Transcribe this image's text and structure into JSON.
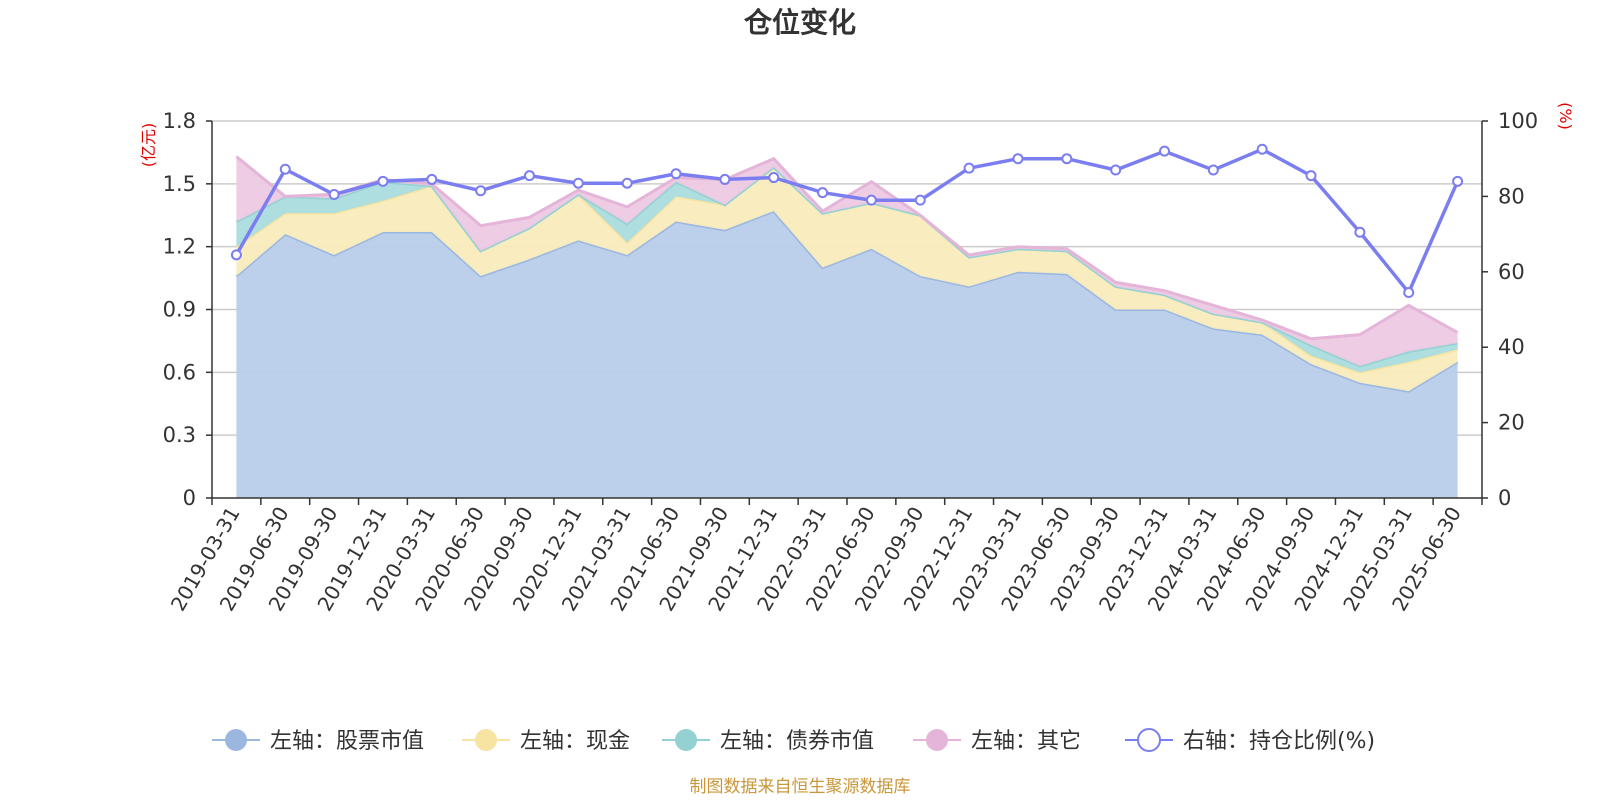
{
  "chart_data": {
    "type": "area",
    "title": "仓位变化",
    "left_axis_unit": "(亿元)",
    "right_axis_unit": "(%)",
    "left_ylim": [
      0,
      1.8
    ],
    "left_yticks": [
      "0",
      "0.3",
      "0.6",
      "0.9",
      "1.2",
      "1.5",
      "1.8"
    ],
    "right_ylim": [
      0,
      100
    ],
    "right_yticks": [
      "0",
      "20",
      "40",
      "60",
      "80",
      "100"
    ],
    "grid": true,
    "legend_position": "bottom",
    "source": "制图数据来自恒生聚源数据库",
    "categories": [
      "2019-03-31",
      "2019-06-30",
      "2019-09-30",
      "2019-12-31",
      "2020-03-31",
      "2020-06-30",
      "2020-09-30",
      "2020-12-31",
      "2021-03-31",
      "2021-06-30",
      "2021-09-30",
      "2021-12-31",
      "2022-03-31",
      "2022-06-30",
      "2022-09-30",
      "2022-12-31",
      "2023-03-31",
      "2023-06-30",
      "2023-09-30",
      "2023-12-31",
      "2024-03-31",
      "2024-06-30",
      "2024-09-30",
      "2024-12-31",
      "2025-03-31",
      "2025-06-30"
    ],
    "series": [
      {
        "name": "左轴：股票市值",
        "axis": "left",
        "kind": "stacked-area",
        "color": "#9bb7e0",
        "fill": "#b8cdea",
        "values": [
          1.06,
          1.26,
          1.16,
          1.27,
          1.27,
          1.06,
          1.14,
          1.23,
          1.16,
          1.32,
          1.28,
          1.37,
          1.1,
          1.19,
          1.06,
          1.01,
          1.08,
          1.07,
          0.9,
          0.9,
          0.81,
          0.78,
          0.64,
          0.55,
          0.51,
          0.65
        ]
      },
      {
        "name": "左轴：现金",
        "axis": "left",
        "kind": "stacked-area",
        "color": "#f7e4a3",
        "fill": "#f9ecbd",
        "values": [
          0.14,
          0.1,
          0.2,
          0.15,
          0.22,
          0.12,
          0.15,
          0.22,
          0.06,
          0.12,
          0.12,
          0.21,
          0.26,
          0.22,
          0.29,
          0.14,
          0.11,
          0.11,
          0.11,
          0.07,
          0.07,
          0.06,
          0.04,
          0.05,
          0.14,
          0.06
        ]
      },
      {
        "name": "左轴：债券市值",
        "axis": "left",
        "kind": "stacked-area",
        "color": "#93d1d3",
        "fill": "#aadcdd",
        "values": [
          0.12,
          0.08,
          0.07,
          0.09,
          0,
          0,
          0,
          0,
          0.09,
          0.07,
          0,
          0,
          0,
          0,
          0,
          0,
          0,
          0,
          0,
          0,
          0,
          0,
          0.05,
          0.03,
          0.05,
          0.03
        ]
      },
      {
        "name": "左轴：其它",
        "axis": "left",
        "kind": "stacked-area",
        "color": "#e4b5d9",
        "fill": "#ecc9e3",
        "values": [
          0.31,
          0,
          0.02,
          0.01,
          0.01,
          0.12,
          0.05,
          0.02,
          0.08,
          0.02,
          0.12,
          0.04,
          0.01,
          0.1,
          0,
          0.01,
          0.01,
          0.01,
          0.02,
          0.02,
          0.04,
          0.01,
          0.03,
          0.15,
          0.22,
          0.05
        ]
      },
      {
        "name": "右轴：持仓比例(%)",
        "axis": "right",
        "kind": "line",
        "color": "#7b7ef0",
        "values": [
          64.5,
          87.2,
          80.5,
          84.0,
          84.5,
          81.5,
          85.5,
          83.5,
          83.5,
          86.0,
          84.5,
          85.0,
          81.0,
          79.0,
          79.0,
          87.5,
          90.0,
          90.0,
          87.0,
          92.0,
          87.0,
          92.5,
          85.5,
          70.5,
          54.5,
          84.0
        ]
      }
    ]
  }
}
